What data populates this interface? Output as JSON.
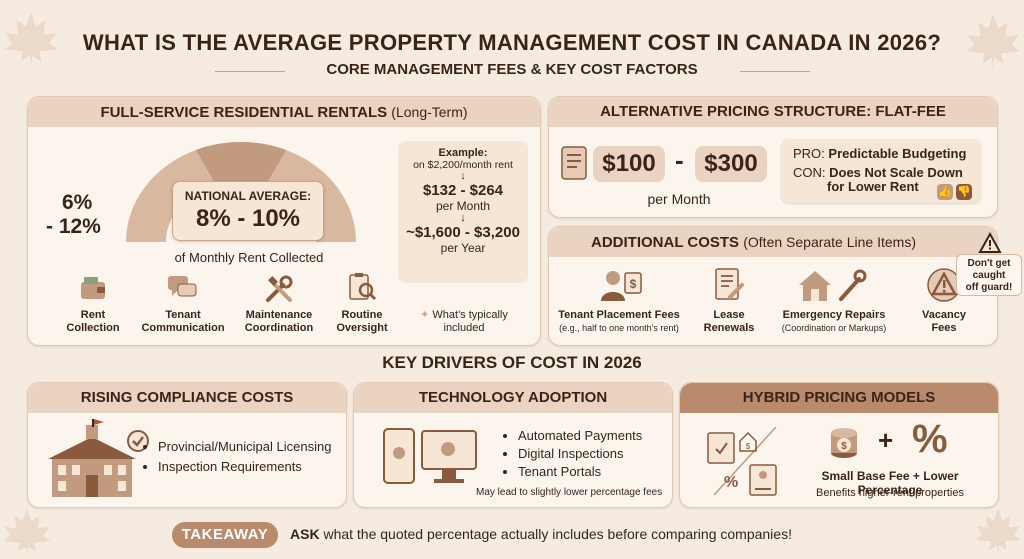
{
  "title": "WHAT IS THE AVERAGE PROPERTY MANAGEMENT COST IN CANADA IN 2026?",
  "subtitle": "CORE MANAGEMENT FEES & KEY COST FACTORS",
  "full_service": {
    "heading": "FULL-SERVICE RESIDENTIAL RENTALS",
    "heading_note": "(Long-Term)",
    "range_line1": "6%",
    "range_line2": "- 12%",
    "avg_label": "NATIONAL AVERAGE:",
    "avg_value": "8% - 10%",
    "avg_caption": "of Monthly Rent Collected",
    "example": {
      "title": "Example:",
      "rent": "on $2,200/month rent",
      "monthly": "$132 - $264",
      "monthly_unit": "per Month",
      "yearly": "~$1,600 - $3,200",
      "yearly_unit": "per Year"
    },
    "services": [
      {
        "line1": "Rent",
        "line2": "Collection",
        "icon": "wallet-icon"
      },
      {
        "line1": "Tenant",
        "line2": "Communication",
        "icon": "chat-icon"
      },
      {
        "line1": "Maintenance",
        "line2": "Coordination",
        "icon": "tools-icon"
      },
      {
        "line1": "Routine",
        "line2": "Oversight",
        "icon": "clipboard-search-icon"
      }
    ],
    "included_note_line1": "What's typically",
    "included_note_line2": "included"
  },
  "flat_fee": {
    "heading": "ALTERNATIVE PRICING STRUCTURE: FLAT-FEE",
    "low": "$100",
    "dash": "-",
    "high": "$300",
    "per": "per Month",
    "pro_label": "PRO:",
    "pro_text": "Predictable Budgeting",
    "con_label": "CON:",
    "con_text_line1": "Does Not Scale Down",
    "con_text_line2": "for Lower Rent"
  },
  "additional": {
    "heading": "ADDITIONAL COSTS",
    "heading_note": "(Often Separate Line Items)",
    "warning_line1": "Don't get",
    "warning_line2": "caught",
    "warning_line3": "off guard!",
    "items": [
      {
        "line1": "Tenant Placement Fees",
        "line2": "(e.g., half to one month's rent)",
        "icon": "tenant-placement-icon"
      },
      {
        "line1": "Lease",
        "line2": "Renewals",
        "icon": "lease-document-icon"
      },
      {
        "line1": "Emergency Repairs",
        "line2": "(Coordination or Markups)",
        "icon": "house-wrench-icon"
      },
      {
        "line1": "Vacancy",
        "line2": "Fees",
        "icon": "warning-icon"
      }
    ]
  },
  "drivers": {
    "heading": "KEY DRIVERS OF COST IN 2026",
    "compliance": {
      "heading": "RISING COMPLIANCE COSTS",
      "bullets": [
        "Provincial/Municipal Licensing",
        "Inspection Requirements"
      ]
    },
    "technology": {
      "heading": "TECHNOLOGY ADOPTION",
      "bullets": [
        "Automated Payments",
        "Digital Inspections",
        "Tenant Portals"
      ],
      "note": "May lead to slightly lower percentage fees"
    },
    "hybrid": {
      "heading": "HYBRID PRICING MODELS",
      "plus": "+",
      "caption": "Small Base Fee + Lower Percentage",
      "note": "Benefits higher-rent properties"
    }
  },
  "takeaway": {
    "label": "TAKEAWAY",
    "text_bold": "ASK",
    "text": " what the quoted percentage actually includes before comparing companies!"
  },
  "colors": {
    "accent": "#b98a6c",
    "dark": "#3a2418",
    "header_bg": "#ead4c1",
    "panel_bg": "#fbf5ee"
  }
}
